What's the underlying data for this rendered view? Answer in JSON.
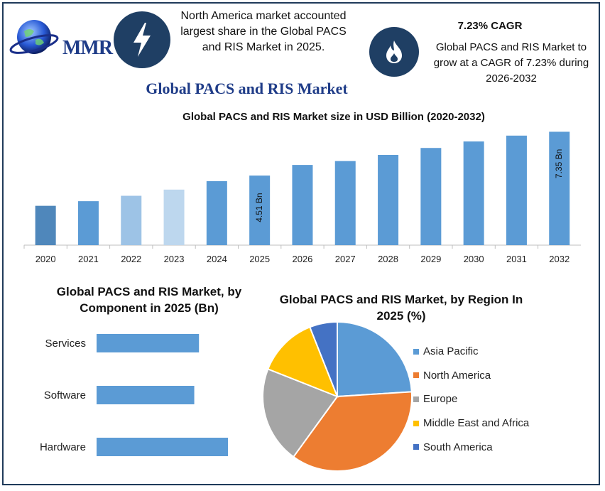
{
  "header": {
    "logo_text": "MMR",
    "note_share": "North America market accounted largest share in the Global PACS and RIS Market in 2025.",
    "cagr_title": "7.23% CAGR",
    "cagr_text": "Global PACS and RIS Market to grow at a CAGR of 7.23% during 2026-2032",
    "lightning_icon": "lightning-bolt-icon",
    "flame_icon": "flame-icon"
  },
  "main_title": "Global PACS and RIS Market",
  "colors": {
    "navy": "#1f3f64",
    "bar_blue": "#5b9bd5",
    "asia_pacific": "#5b9bd5",
    "north_america": "#ed7d31",
    "europe": "#a5a5a5",
    "middle_east_africa": "#ffc000",
    "south_america": "#4472c4"
  },
  "chart_data": [
    {
      "type": "bar",
      "title": "Global PACS and RIS Market size in USD Billion (2020-2032)",
      "categories": [
        "2020",
        "2021",
        "2022",
        "2023",
        "2024",
        "2025",
        "2026",
        "2027",
        "2028",
        "2029",
        "2030",
        "2031",
        "2032"
      ],
      "values": [
        2.55,
        2.85,
        3.2,
        3.6,
        4.15,
        4.51,
        5.2,
        5.45,
        5.85,
        6.3,
        6.72,
        7.1,
        7.35
      ],
      "bar_colors": [
        "#4f87bb",
        "#5b9bd5",
        "#9dc3e6",
        "#bdd7ee",
        "#5b9bd5",
        "#5b9bd5",
        "#5b9bd5",
        "#5b9bd5",
        "#5b9bd5",
        "#5b9bd5",
        "#5b9bd5",
        "#5b9bd5",
        "#5b9bd5"
      ],
      "data_labels": [
        {
          "category": "2025",
          "text": "4.51 Bn"
        },
        {
          "category": "2032",
          "text": "7.35 Bn"
        }
      ],
      "ylim": [
        0,
        7.6
      ],
      "grid": false
    },
    {
      "type": "bar",
      "orientation": "horizontal",
      "title": "Global PACS and RIS Market, by Component in 2025 (Bn)",
      "categories": [
        "Services",
        "Software",
        "Hardware"
      ],
      "values": [
        1.52,
        1.45,
        1.95
      ],
      "xlim": [
        0,
        3.6
      ],
      "color": "#5b9bd5"
    },
    {
      "type": "pie",
      "title": "Global PACS and RIS Market, by Region In 2025 (%)",
      "labels": [
        "Asia Pacific",
        "North America",
        "Europe",
        "Middle East and Africa",
        "South America"
      ],
      "values": [
        24,
        36,
        21,
        13,
        6
      ],
      "colors": [
        "#5b9bd5",
        "#ed7d31",
        "#a5a5a5",
        "#ffc000",
        "#4472c4"
      ],
      "legend": "right"
    }
  ]
}
